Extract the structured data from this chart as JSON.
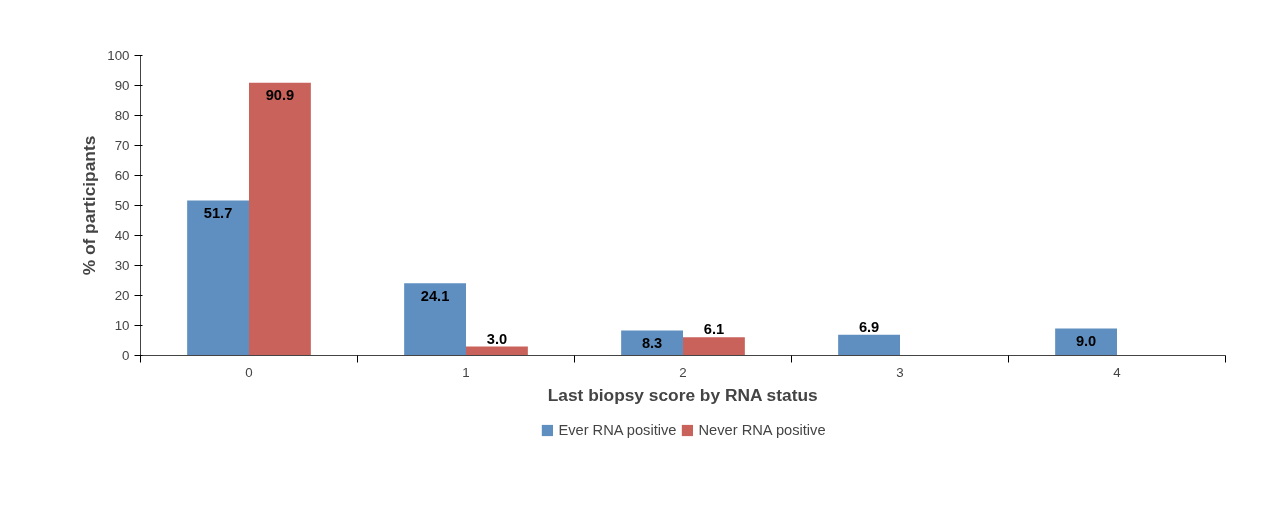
{
  "chart_data": {
    "type": "bar",
    "xlabel": "Last biopsy score by RNA status",
    "ylabel": "% of participants",
    "categories": [
      "0",
      "1",
      "2",
      "3",
      "4"
    ],
    "series": [
      {
        "name": "Ever RNA positive",
        "color": "#5f8fc0",
        "values": [
          51.7,
          24.1,
          8.3,
          6.9,
          9.0
        ],
        "value_labels": [
          "51.7",
          "24.1",
          "8.3",
          "6.9",
          "9.0"
        ]
      },
      {
        "name": "Never RNA positive",
        "color": "#c8625b",
        "values": [
          90.9,
          3.0,
          6.1,
          null,
          null
        ],
        "value_labels": [
          "90.9",
          "3.0",
          "6.1",
          null,
          null
        ]
      }
    ],
    "ylim": [
      0,
      100
    ],
    "yticks": [
      0,
      10,
      20,
      30,
      40,
      50,
      60,
      70,
      80,
      90,
      100
    ],
    "legend": "bottom"
  }
}
